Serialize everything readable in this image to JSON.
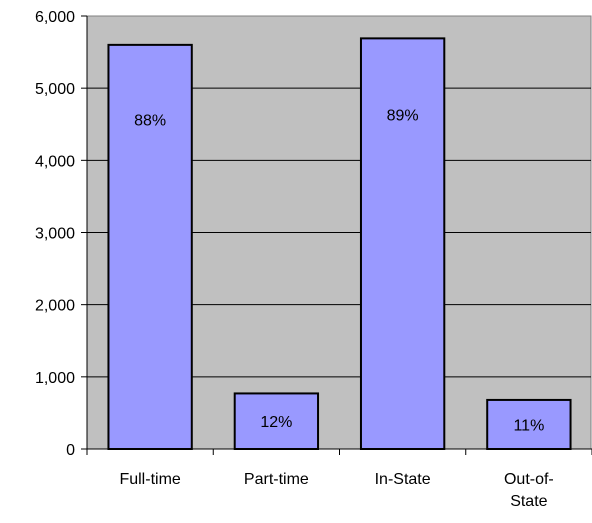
{
  "chart_data": {
    "type": "bar",
    "categories": [
      [
        "Full-time"
      ],
      [
        "Part-time"
      ],
      [
        "In-State"
      ],
      [
        "Out-of-",
        "State"
      ]
    ],
    "values": [
      5600,
      770,
      5690,
      680
    ],
    "data_labels": [
      "88%",
      "12%",
      "89%",
      "11%"
    ],
    "y_ticks": [
      "0",
      "1,000",
      "2,000",
      "3,000",
      "4,000",
      "5,000",
      "6,000"
    ],
    "ylim": [
      0,
      6000
    ],
    "grid": true,
    "colors": {
      "plot_background": "#c0c0c0",
      "bar_fill": "#9999ff",
      "bar_stroke": "#000000",
      "gridline": "#000000"
    }
  }
}
